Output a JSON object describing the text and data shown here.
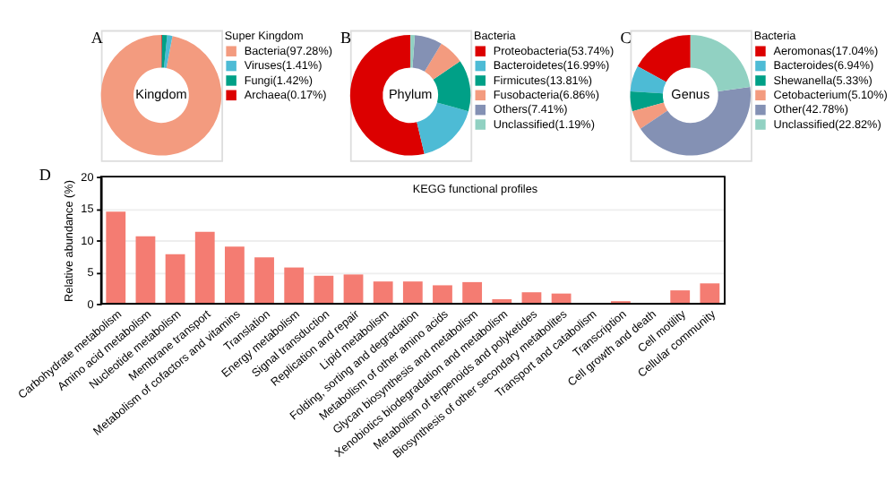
{
  "chart_data": [
    {
      "type": "donut",
      "legend_title": "Super Kingdom",
      "legend": "right",
      "annotations": [
        "A",
        "Kingdom"
      ],
      "categories": [
        "Bacteria(97.28%)",
        "Viruses(1.41%)",
        "Fungi(1.42%)",
        "Archaea(0.17%)"
      ],
      "values": [
        97.28,
        1.41,
        1.42,
        0.17
      ],
      "colors": [
        "#f39b7f",
        "#4dbbd5",
        "#00a087",
        "#dc0000"
      ]
    },
    {
      "type": "donut",
      "legend_title": "Bacteria",
      "legend": "right",
      "annotations": [
        "B",
        "Phylum"
      ],
      "categories": [
        "Proteobacteria(53.74%)",
        "Bacteroidetes(16.99%)",
        "Firmicutes(13.81%)",
        "Fusobacteria(6.86%)",
        "Others(7.41%)",
        "Unclassified(1.19%)"
      ],
      "values": [
        53.74,
        16.99,
        13.81,
        6.86,
        7.41,
        1.19
      ],
      "colors": [
        "#dc0000",
        "#4dbbd5",
        "#00a087",
        "#f39b7f",
        "#8491b4",
        "#91d1c2"
      ]
    },
    {
      "type": "donut",
      "legend_title": "Bacteria",
      "legend": "right",
      "annotations": [
        "C",
        "Genus"
      ],
      "categories": [
        "Aeromonas(17.04%)",
        "Bacteroides(6.94%)",
        "Shewanella(5.33%)",
        "Cetobacterium(5.10%)",
        "Other(42.78%)",
        "Unclassified(22.82%)"
      ],
      "values": [
        17.04,
        6.94,
        5.33,
        5.1,
        42.78,
        22.82
      ],
      "colors": [
        "#dc0000",
        "#4dbbd5",
        "#00a087",
        "#f39b7f",
        "#8491b4",
        "#91d1c2"
      ]
    },
    {
      "type": "bar",
      "title": "KEGG functional profiles",
      "ylabel": "Relative abundance (%)",
      "annotations": [
        "D"
      ],
      "categories": [
        "Carbohydrate metabolism",
        "Amino acid metabolism",
        "Nucleotide metabolism",
        "Membrane transport",
        "Metabolism of cofactors and vitamins",
        "Translation",
        "Energy metabolism",
        "Signal transduction",
        "Replication and repair",
        "Lipid metabolism",
        "Folding, sorting and degradation",
        "Metabolism of other amino acids",
        "Glycan biosynthesis and metabolism",
        "Xenobiotics biodegradation and metabolism",
        "Metabolism of terpenoids and polyketides",
        "Biosynthesis of other secondary metabolites",
        "Transport and catabolism",
        "Transcription",
        "Cell growth and death",
        "Cell motility",
        "Cellular community"
      ],
      "values": [
        14.5,
        10.6,
        7.8,
        11.3,
        9.0,
        7.3,
        5.7,
        4.4,
        4.6,
        3.5,
        3.5,
        2.9,
        3.4,
        0.7,
        1.8,
        1.6,
        0,
        0.4,
        0,
        2.1,
        3.2
      ],
      "color": "#f47c72",
      "ylim": [
        0,
        20
      ],
      "yticks": [
        0,
        5,
        10,
        15,
        20
      ],
      "grid": "y"
    }
  ]
}
